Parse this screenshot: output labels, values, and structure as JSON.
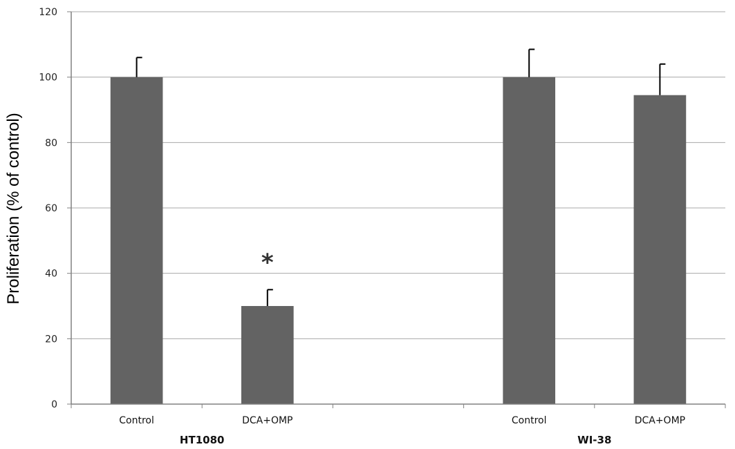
{
  "chart_data": {
    "type": "bar",
    "ylabel": "Proliferation (% of control)",
    "ylim": [
      0,
      120
    ],
    "yticks": [
      0,
      20,
      40,
      60,
      80,
      100,
      120
    ],
    "grid": true,
    "groups": [
      {
        "name": "HT1080",
        "bars": [
          {
            "category": "Control",
            "value": 100,
            "error": 6,
            "annotation": ""
          },
          {
            "category": "DCA+OMP",
            "value": 30,
            "error": 5,
            "annotation": "*"
          }
        ]
      },
      {
        "name": "WI-38",
        "bars": [
          {
            "category": "Control",
            "value": 100,
            "error": 8.5,
            "annotation": ""
          },
          {
            "category": "DCA+OMP",
            "value": 94.5,
            "error": 9.5,
            "annotation": ""
          }
        ]
      }
    ],
    "colors": {
      "bar": "#636363",
      "grid": "#a8a8a8",
      "axis": "#808080",
      "error": "#000000"
    }
  }
}
